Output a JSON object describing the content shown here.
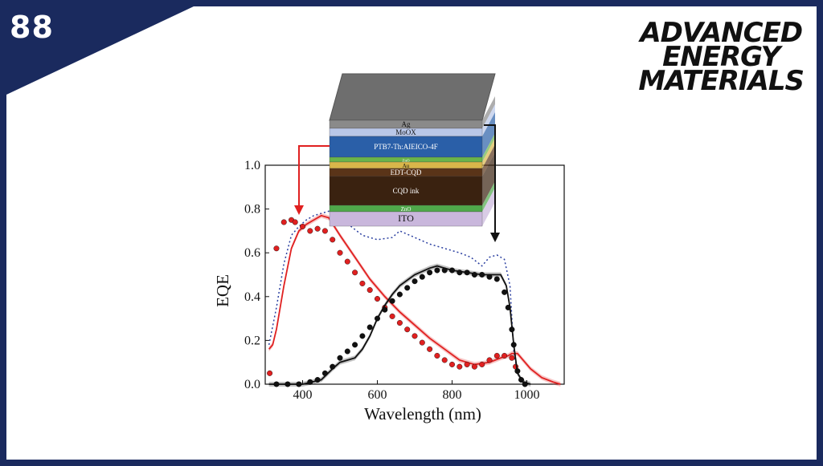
{
  "badge_number": "88",
  "journal": {
    "line1": "ADVANCED",
    "line2": "ENERGY",
    "line3": "MATERIALS"
  },
  "colors": {
    "frame": "#1a2a5e",
    "red": "#e02020",
    "black": "#111111",
    "blue_dotted": "#2a3fa0",
    "gray": "#888888"
  },
  "device_stack": {
    "layers": [
      "Ag",
      "MoOX",
      "PTB7-Th:AIEICO-4F",
      "ZnO",
      "Au",
      "EDT-CQD",
      "CQD ink",
      "ZnO",
      "ITO"
    ]
  },
  "chart_data": {
    "type": "line",
    "xlabel": "Wavelength (nm)",
    "ylabel": "EQE",
    "xlim": [
      300,
      1100
    ],
    "ylim": [
      0.0,
      1.0
    ],
    "xticks": [
      400,
      600,
      800,
      1000
    ],
    "xtick_labels": [
      "400",
      "600",
      "800",
      "1000"
    ],
    "yticks": [
      0.0,
      0.2,
      0.4,
      0.6,
      0.8,
      1.0
    ],
    "ytick_labels": [
      "0.0",
      "0.2",
      "0.4",
      "0.6",
      "0.8",
      "1.0"
    ],
    "series": [
      {
        "style": "dotted-line",
        "color": "#2a3fa0",
        "x": [
          310,
          330,
          350,
          370,
          390,
          410,
          430,
          450,
          470,
          490,
          510,
          530,
          560,
          600,
          640,
          660,
          700,
          740,
          780,
          820,
          850,
          880,
          900,
          920,
          940,
          955,
          965,
          975,
          985
        ],
        "y": [
          0.18,
          0.35,
          0.55,
          0.68,
          0.72,
          0.75,
          0.77,
          0.78,
          0.79,
          0.78,
          0.75,
          0.72,
          0.68,
          0.66,
          0.67,
          0.7,
          0.67,
          0.64,
          0.62,
          0.6,
          0.58,
          0.54,
          0.58,
          0.59,
          0.57,
          0.45,
          0.15,
          0.05,
          0.02
        ]
      },
      {
        "style": "solid-band",
        "color": "#e02020",
        "x": [
          310,
          320,
          330,
          350,
          370,
          390,
          410,
          430,
          450,
          470,
          500,
          540,
          580,
          620,
          660,
          700,
          740,
          780,
          820,
          860,
          900,
          930,
          950,
          960,
          975,
          990,
          1010,
          1040,
          1070,
          1090
        ],
        "y": [
          0.16,
          0.18,
          0.25,
          0.45,
          0.62,
          0.7,
          0.73,
          0.75,
          0.77,
          0.76,
          0.68,
          0.58,
          0.48,
          0.4,
          0.33,
          0.27,
          0.21,
          0.16,
          0.11,
          0.09,
          0.1,
          0.12,
          0.13,
          0.14,
          0.14,
          0.11,
          0.07,
          0.03,
          0.01,
          0.0
        ]
      },
      {
        "style": "markers",
        "color": "#e02020",
        "x": [
          312,
          330,
          350,
          370,
          380,
          400,
          420,
          440,
          460,
          480,
          500,
          520,
          540,
          560,
          580,
          600,
          620,
          640,
          660,
          680,
          700,
          720,
          740,
          760,
          780,
          800,
          820,
          840,
          860,
          880,
          900,
          920,
          940,
          960,
          970
        ],
        "y": [
          0.05,
          0.62,
          0.74,
          0.75,
          0.74,
          0.72,
          0.7,
          0.71,
          0.7,
          0.66,
          0.6,
          0.56,
          0.51,
          0.46,
          0.43,
          0.39,
          0.35,
          0.31,
          0.28,
          0.25,
          0.22,
          0.19,
          0.16,
          0.13,
          0.11,
          0.09,
          0.08,
          0.09,
          0.08,
          0.09,
          0.11,
          0.13,
          0.13,
          0.12,
          0.08
        ]
      },
      {
        "style": "solid-band",
        "color": "#111111",
        "x": [
          310,
          400,
          450,
          480,
          500,
          520,
          540,
          560,
          580,
          600,
          620,
          640,
          660,
          700,
          740,
          760,
          780,
          800,
          840,
          880,
          910,
          930,
          945,
          955,
          965,
          975,
          990,
          1010
        ],
        "y": [
          0.0,
          0.0,
          0.02,
          0.07,
          0.1,
          0.11,
          0.12,
          0.16,
          0.22,
          0.3,
          0.36,
          0.41,
          0.45,
          0.5,
          0.53,
          0.54,
          0.53,
          0.52,
          0.51,
          0.5,
          0.5,
          0.5,
          0.45,
          0.35,
          0.18,
          0.05,
          0.01,
          0.0
        ]
      },
      {
        "style": "markers",
        "color": "#111111",
        "x": [
          330,
          360,
          390,
          420,
          440,
          460,
          480,
          500,
          520,
          540,
          560,
          580,
          600,
          620,
          640,
          660,
          680,
          700,
          720,
          740,
          760,
          780,
          800,
          820,
          840,
          860,
          880,
          900,
          920,
          940,
          950,
          960,
          965,
          975,
          985,
          995
        ],
        "y": [
          0.0,
          0.0,
          0.0,
          0.01,
          0.02,
          0.05,
          0.08,
          0.12,
          0.15,
          0.18,
          0.22,
          0.26,
          0.3,
          0.34,
          0.38,
          0.41,
          0.44,
          0.47,
          0.49,
          0.51,
          0.52,
          0.52,
          0.52,
          0.51,
          0.51,
          0.5,
          0.5,
          0.49,
          0.48,
          0.42,
          0.35,
          0.25,
          0.18,
          0.06,
          0.02,
          0.0
        ]
      }
    ]
  }
}
